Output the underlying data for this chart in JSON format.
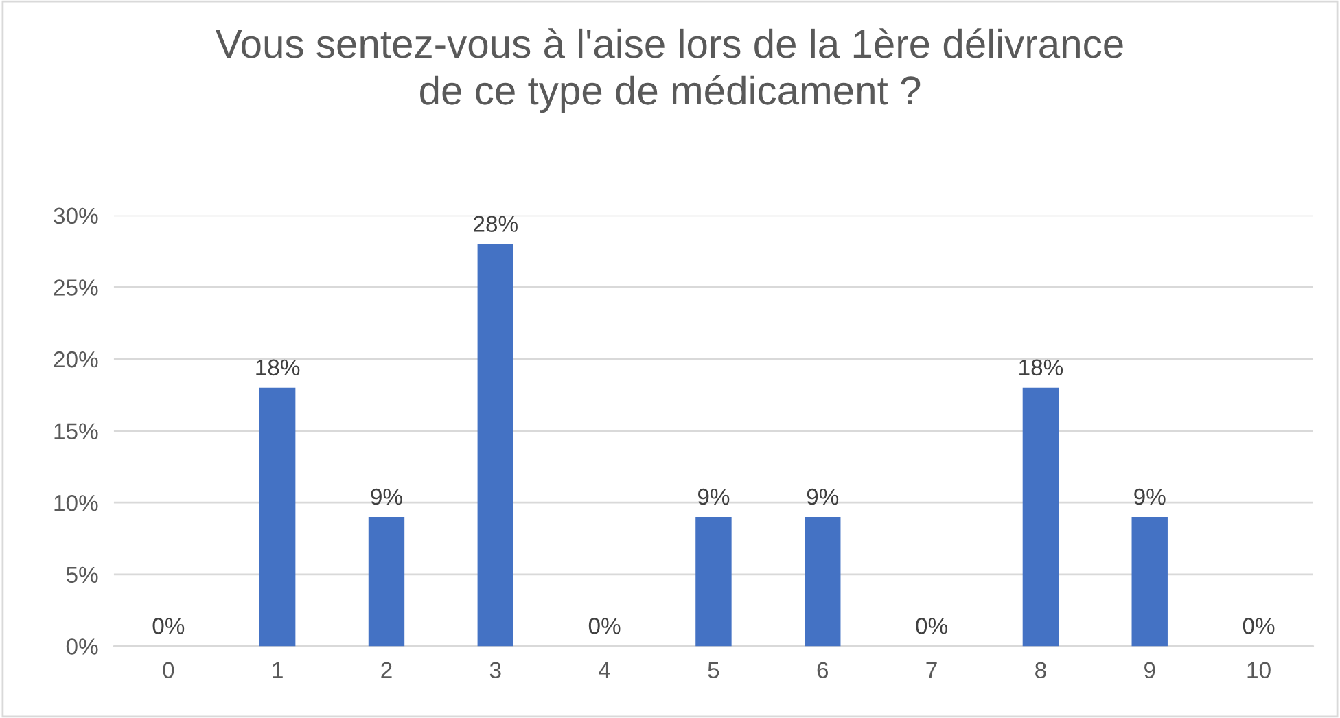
{
  "chart_data": {
    "type": "bar",
    "title": "Vous sentez-vous à l'aise lors de la 1ère délivrance\nde ce type de médicament ?",
    "categories": [
      "0",
      "1",
      "2",
      "3",
      "4",
      "5",
      "6",
      "7",
      "8",
      "9",
      "10"
    ],
    "values": [
      0,
      18,
      9,
      28,
      0,
      9,
      9,
      0,
      18,
      9,
      0
    ],
    "value_labels": [
      "0%",
      "18%",
      "9%",
      "28%",
      "0%",
      "9%",
      "9%",
      "0%",
      "18%",
      "9%",
      "0%"
    ],
    "color": "#4472c4",
    "ylim": [
      0,
      30
    ],
    "yticks": [
      {
        "value": 0,
        "label": "0%"
      },
      {
        "value": 5,
        "label": "5%"
      },
      {
        "value": 10,
        "label": "10%"
      },
      {
        "value": 15,
        "label": "15%"
      },
      {
        "value": 20,
        "label": "20%"
      },
      {
        "value": 25,
        "label": "25%"
      },
      {
        "value": 30,
        "label": "30%"
      }
    ],
    "grid": "y"
  }
}
